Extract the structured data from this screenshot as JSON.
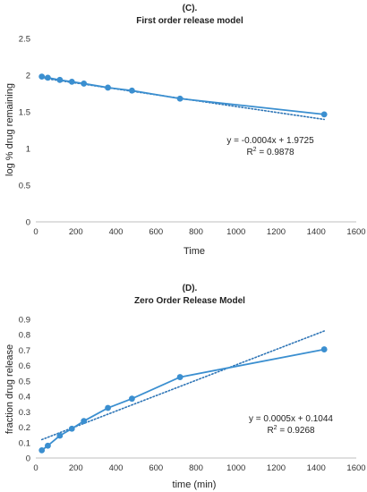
{
  "chart_data": [
    {
      "type": "scatter",
      "title_line1": "(C).",
      "title": "First order release model",
      "xlabel": "Time",
      "ylabel": "log % drug remaining",
      "xlim": [
        0,
        1600
      ],
      "ylim": [
        0,
        2.5
      ],
      "xticks": [
        "0",
        "200",
        "400",
        "600",
        "800",
        "1000",
        "1200",
        "1400",
        "1600"
      ],
      "yticks": [
        "0",
        "0.5",
        "1",
        "1.5",
        "2",
        "2.5"
      ],
      "grid": false,
      "color": "#3b8fd0",
      "series": [
        {
          "x": [
            30,
            60,
            120,
            180,
            240,
            360,
            480,
            720,
            1440
          ],
          "y": [
            1.98,
            1.965,
            1.935,
            1.91,
            1.885,
            1.83,
            1.79,
            1.68,
            1.465
          ],
          "markers": true,
          "line": true
        }
      ],
      "trendline": {
        "slope": -0.0004,
        "intercept": 1.9725,
        "style": "dotted"
      },
      "equation": "y = -0.0004x + 1.9725",
      "r2_prefix": "R",
      "r2_value": " = 0.9878"
    },
    {
      "type": "scatter",
      "title_line1": "(D).",
      "title": "Zero Order Release Model",
      "xlabel": "time (min)",
      "ylabel": "fraction drug release",
      "xlim": [
        0,
        1600
      ],
      "ylim": [
        0,
        0.9
      ],
      "xticks": [
        "0",
        "200",
        "400",
        "600",
        "800",
        "1000",
        "1200",
        "1400",
        "1600"
      ],
      "yticks": [
        "0",
        "0.1",
        "0.2",
        "0.3",
        "0.4",
        "0.5",
        "0.6",
        "0.7",
        "0.8",
        "0.9"
      ],
      "grid": false,
      "color": "#3b8fd0",
      "series": [
        {
          "x": [
            30,
            60,
            120,
            180,
            240,
            360,
            480,
            720,
            1440
          ],
          "y": [
            0.05,
            0.08,
            0.145,
            0.19,
            0.24,
            0.325,
            0.385,
            0.525,
            0.705
          ],
          "markers": true,
          "line": true
        }
      ],
      "trendline": {
        "slope": 0.0005,
        "intercept": 0.1044,
        "style": "dotted"
      },
      "equation": "y = 0.0005x + 0.1044",
      "r2_prefix": "R",
      "r2_value": " = 0.9268"
    }
  ]
}
